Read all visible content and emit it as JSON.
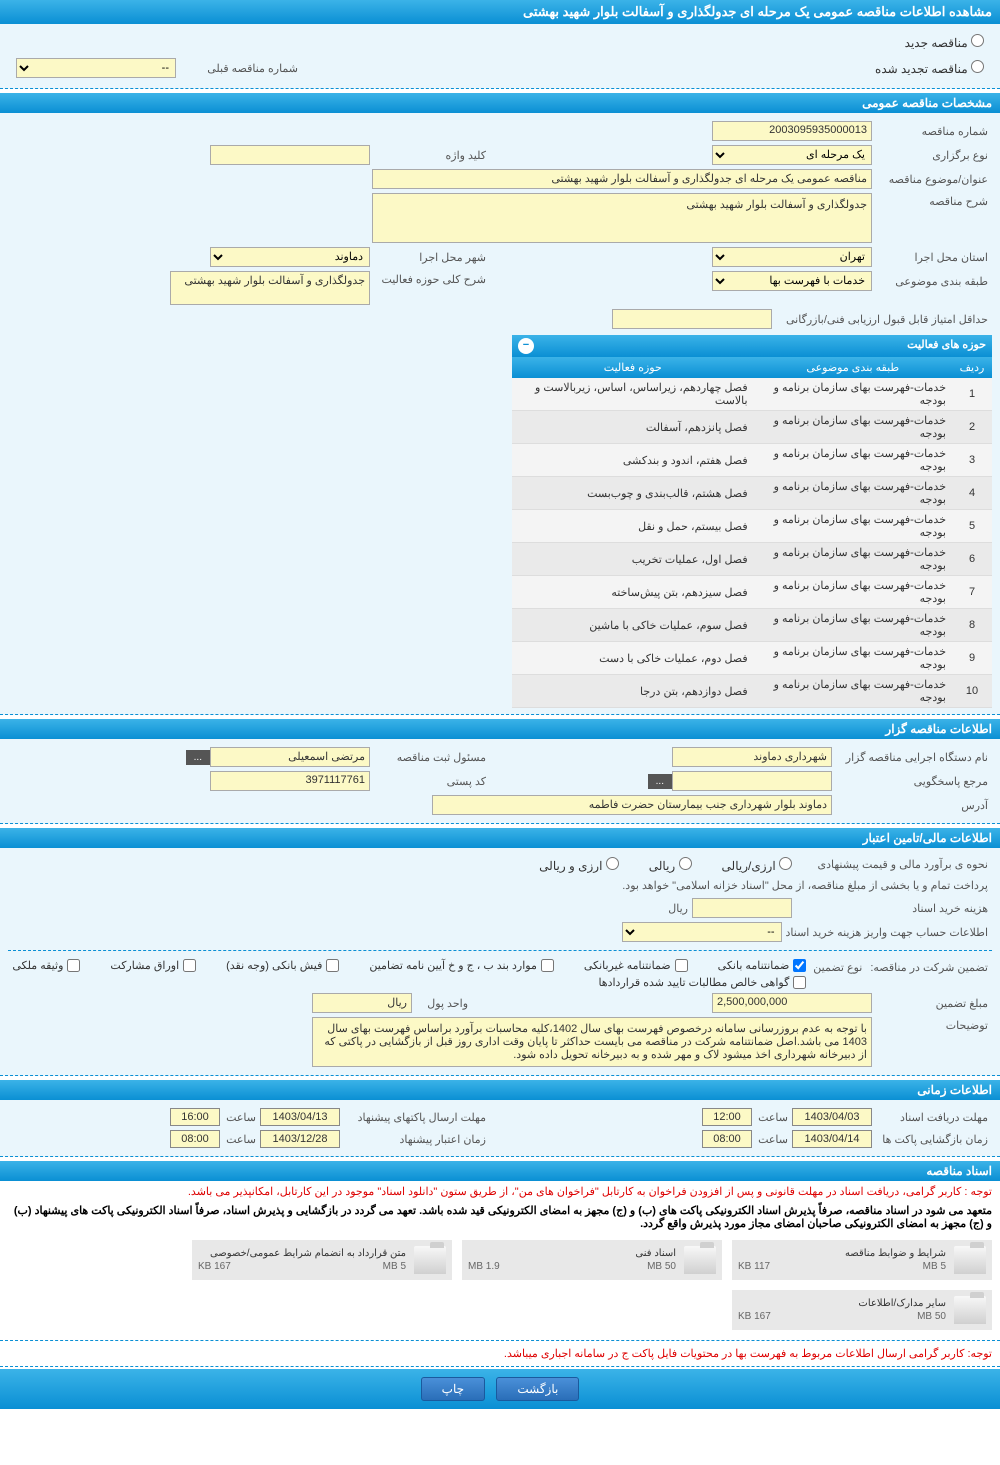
{
  "title": "مشاهده اطلاعات مناقصه عمومی یک مرحله ای جدولگذاری و آسفالت بلوار شهید بهشتی",
  "radios": {
    "new": "مناقصه جدید",
    "renewed": "مناقصه تجدید شده",
    "prev_label": "شماره مناقصه قبلی",
    "prev_value": "--"
  },
  "sections": {
    "general": "مشخصات مناقصه عمومی",
    "activity": "حوزه های فعالیت",
    "organizer": "اطلاعات مناقصه گزار",
    "financial": "اطلاعات مالی/تامین اعتبار",
    "timing": "اطلاعات زمانی",
    "docs": "اسناد مناقصه"
  },
  "general": {
    "number_label": "شماره مناقصه",
    "number": "2003095935000013",
    "type_label": "نوع برگزاری",
    "type": "یک مرحله ای",
    "keyword_label": "کلید واژه",
    "keyword": "",
    "subject_label": "عنوان/موضوع مناقصه",
    "subject": "مناقصه عمومی یک مرحله ای جدولگذاری و آسفالت بلوار شهید بهشتی",
    "desc_label": "شرح مناقصه",
    "desc": "جدولگذاری و آسفالت بلوار شهید بهشتی",
    "province_label": "استان محل اجرا",
    "province": "تهران",
    "city_label": "شهر محل اجرا",
    "city": "دماوند",
    "category_label": "طبقه بندی موضوعی",
    "category": "خدمات با فهرست بها",
    "scope_label": "شرح کلی حوزه فعالیت",
    "scope": "جدولگذاری و آسفالت بلوار شهید بهشتی",
    "min_score_label": "حداقل امتیاز قابل قبول ارزیابی فنی/بازرگانی",
    "min_score": ""
  },
  "activity_table": {
    "headers": {
      "row": "ردیف",
      "category": "طبقه بندی موضوعی",
      "scope": "حوزه فعالیت"
    },
    "rows": [
      {
        "n": "1",
        "cat": "خدمات-فهرست بهای سازمان برنامه و بودجه",
        "scope": "فصل چهاردهم، زیراساس، اساس، زیربالاست  و بالاست"
      },
      {
        "n": "2",
        "cat": "خدمات-فهرست بهای سازمان برنامه و بودجه",
        "scope": "فصل پانزدهم، آسفالت"
      },
      {
        "n": "3",
        "cat": "خدمات-فهرست بهای سازمان برنامه و بودجه",
        "scope": "فصل هفتم، اندود و بندکشی"
      },
      {
        "n": "4",
        "cat": "خدمات-فهرست بهای سازمان برنامه و بودجه",
        "scope": "فصل هشتم، قالب‌بندی و چوب‌بست"
      },
      {
        "n": "5",
        "cat": "خدمات-فهرست بهای سازمان برنامه و بودجه",
        "scope": "فصل بیستم، حمل و نقل"
      },
      {
        "n": "6",
        "cat": "خدمات-فهرست بهای سازمان برنامه و بودجه",
        "scope": "فصل اول، عملیات تخریب"
      },
      {
        "n": "7",
        "cat": "خدمات-فهرست بهای سازمان برنامه و بودجه",
        "scope": "فصل سیزدهم، بتن پیش‌ساخته"
      },
      {
        "n": "8",
        "cat": "خدمات-فهرست بهای سازمان برنامه و بودجه",
        "scope": "فصل سوم، عملیات خاکی با ماشین"
      },
      {
        "n": "9",
        "cat": "خدمات-فهرست بهای سازمان برنامه و بودجه",
        "scope": "فصل دوم، عملیات خاکی با دست"
      },
      {
        "n": "10",
        "cat": "خدمات-فهرست بهای سازمان برنامه و بودجه",
        "scope": "فصل دوازدهم، بتن درجا"
      }
    ]
  },
  "organizer": {
    "exec_label": "نام دستگاه اجرایی مناقصه گزار",
    "exec": "شهرداری دماوند",
    "reg_label": "مسئول ثبت مناقصه",
    "reg": "مرتضی اسمعیلی",
    "dots": "...",
    "ref_label": "مرجع پاسخگویی",
    "ref": "",
    "postal_label": "کد پستی",
    "postal": "3971117761",
    "addr_label": "آدرس",
    "addr": "دماوند بلوار شهرداری  جنب بیمارستان حضرت فاطمه"
  },
  "financial": {
    "estimate_label": "نحوه ی برآورد مالی و قیمت پیشنهادی",
    "opt_rial_fx": "ارزی/ریالی",
    "opt_rial": "ریالی",
    "opt_fx": "ارزی و ریالی",
    "payment_note": "پرداخت تمام و یا بخشی از مبلغ مناقصه، از محل \"اسناد خزانه اسلامی\" خواهد بود.",
    "buy_cost_label": "هزینه خرید اسناد",
    "buy_cost_unit": "ریال",
    "account_label": "اطلاعات حساب جهت واریز هزینه خرید اسناد",
    "account": "--",
    "guarantee_label": "تضمین شرکت در مناقصه:",
    "guarantee_type_label": "نوع تضمین",
    "chk_bank": "ضمانتنامه بانکی",
    "chk_nonbank": "ضمانتنامه غیربانکی",
    "chk_items": "موارد بند ب ، ج و خ آیین نامه تضامین",
    "chk_cash": "فیش بانکی (وجه نقد)",
    "chk_securities": "اوراق مشارکت",
    "chk_property": "وثیقه ملکی",
    "chk_receivables": "گواهی خالص مطالبات تایید شده قراردادها",
    "amount_label": "مبلغ تضمین",
    "amount": "2,500,000,000",
    "unit_label": "واحد پول",
    "unit": "ریال",
    "desc_label": "توضیحات",
    "desc": "با توجه به عدم بروزرسانی سامانه درخصوص فهرست بهای سال 1402،کلیه محاسبات برآورد براساس فهرست بهای سال 1403 می باشد.اصل ضمانتنامه شرکت در مناقصه می بایست حداکثر تا پایان وقت اداری روز قبل از بازگشایی در پاکتی که از دبیرخانه شهرداری اخذ میشود لاک و مهر شده و به دبیرخانه تحویل داده شود."
  },
  "timing": {
    "receive_label": "مهلت دریافت اسناد",
    "receive_date": "1403/04/03",
    "time_label": "ساعت",
    "receive_time": "12:00",
    "submit_label": "مهلت ارسال پاکتهای پیشنهاد",
    "submit_date": "1403/04/13",
    "submit_time": "16:00",
    "open_label": "زمان بازگشایی پاکت ها",
    "open_date": "1403/04/14",
    "open_time": "08:00",
    "validity_label": "زمان اعتبار پیشنهاد",
    "validity_date": "1403/12/28",
    "validity_time": "08:00"
  },
  "docs": {
    "note1": "توجه : کاربر گرامی، دریافت اسناد در مهلت قانونی و پس از افزودن فراخوان به کارتابل \"فراخوان های من\"، از طریق ستون \"دانلود اسناد\" موجود در این کارتابل، امکانپذیر می باشد.",
    "note2": "متعهد می شود در اسناد مناقصه، صرفاً پذیرش اسناد الکترونیکی پاکت های (ب) و (ج) مجهز به امضای الکترونیکی قید شده باشد. تعهد می گردد در بازگشایی و پذیرش اسناد، صرفاً اسناد الکترونیکی پاکت های پیشنهاد (ب) و (ج) مجهز به امضای الکترونیکی صاحبان امضای مجاز مورد پذیرش واقع گردد.",
    "files": [
      {
        "title": "شرایط و ضوابط مناقصه",
        "size": "117 KB",
        "max": "5 MB"
      },
      {
        "title": "اسناد فنی",
        "size": "1.9 MB",
        "max": "50 MB"
      },
      {
        "title": "متن قرارداد به انضمام شرایط عمومی/خصوصی",
        "size": "167 KB",
        "max": "5 MB"
      },
      {
        "title": "سایر مدارک/اطلاعات",
        "size": "167 KB",
        "max": "50 MB"
      }
    ],
    "note3": "توجه: کاربر گرامی ارسال اطلاعات مربوط به فهرست بها در محتویات فایل پاکت ج در سامانه اجباری میباشد."
  },
  "buttons": {
    "back": "بازگشت",
    "print": "چاپ"
  },
  "colors": {
    "header_bg": "#0a8fd4",
    "field_bg": "#fcf9c6",
    "content_bg": "#eaf6fc"
  }
}
